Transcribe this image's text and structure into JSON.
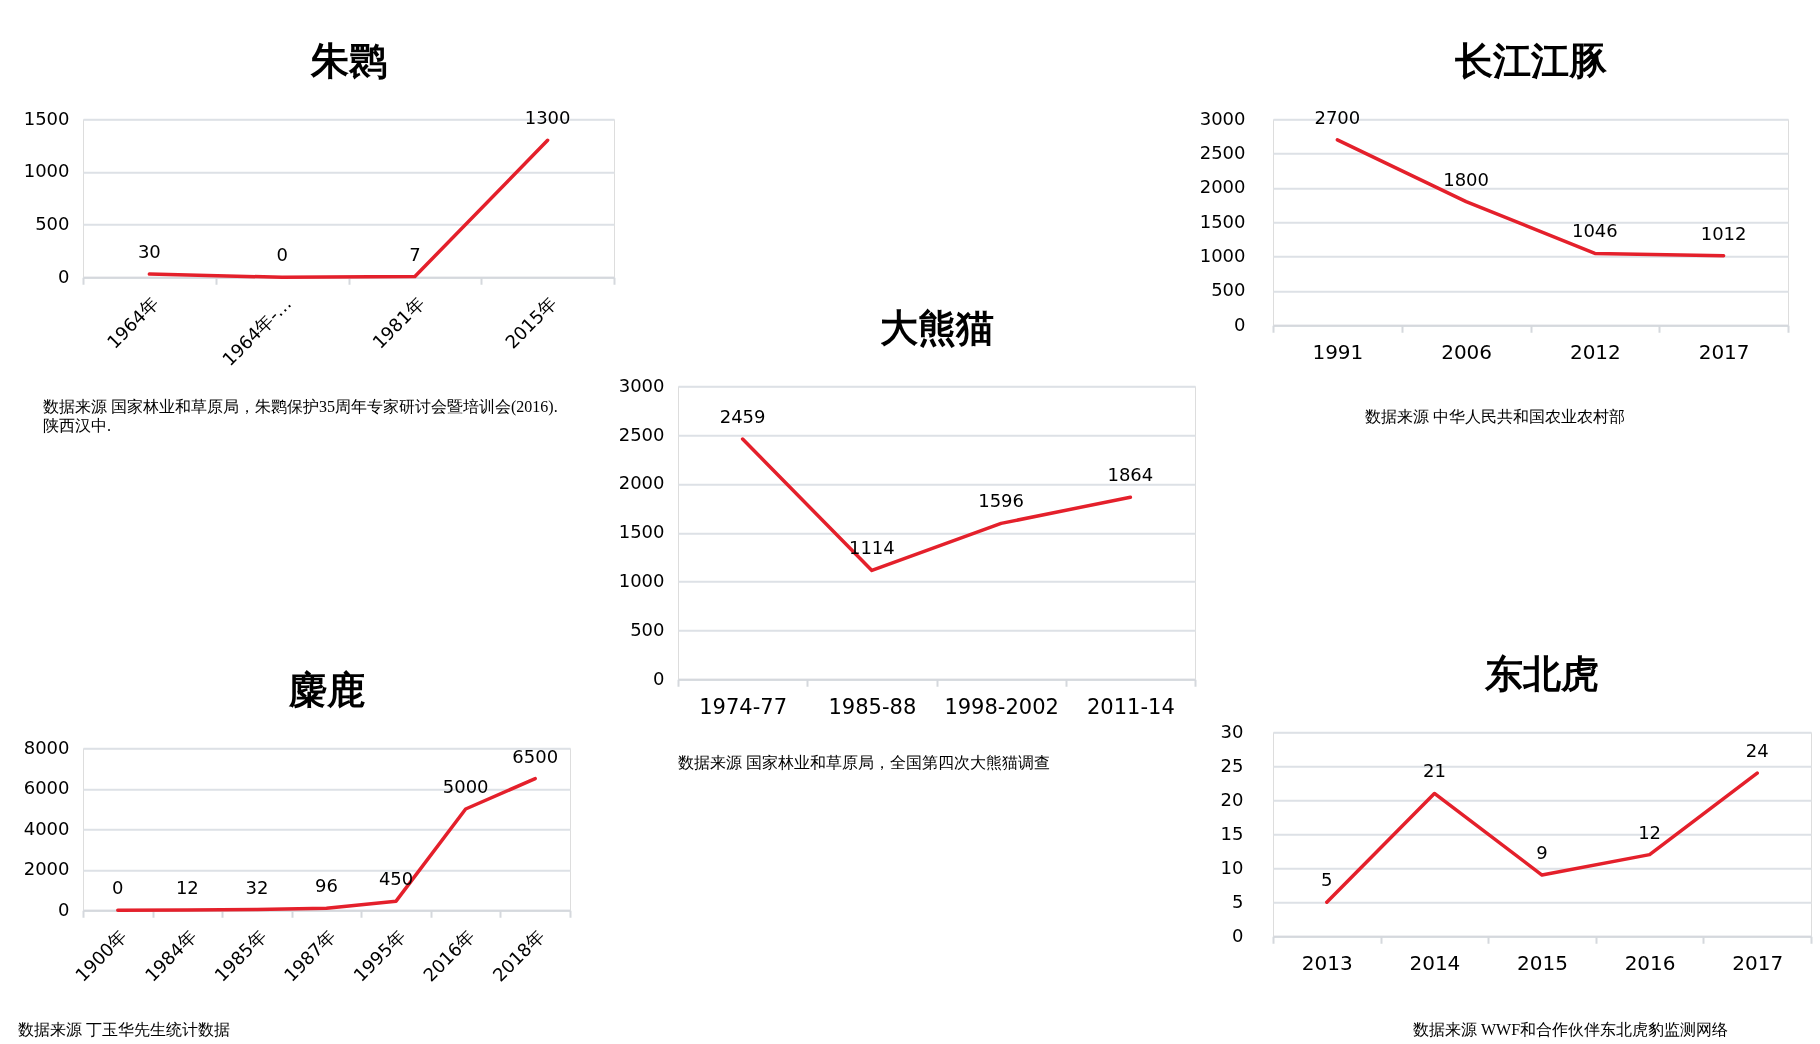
{
  "chart_data": [
    {
      "type": "line",
      "title": "朱鹮",
      "categories": [
        "1964年",
        "1964年-…",
        "1981年",
        "2015年"
      ],
      "values": [
        30,
        0,
        7,
        1300
      ],
      "color": "#e4202b",
      "ylim": [
        0,
        1500
      ],
      "yticks": [
        0,
        500,
        1000,
        1500
      ],
      "grid": "y",
      "data_labels": true,
      "annotations": [
        "数据来源 国家林业和草原局，朱鹮保护35周年专家研讨会暨培训会(2016). 陕西汉中."
      ]
    },
    {
      "type": "line",
      "title": "长江江豚",
      "categories": [
        "1991",
        "2006",
        "2012",
        "2017"
      ],
      "values": [
        2700,
        1800,
        1046,
        1012
      ],
      "color": "#e4202b",
      "ylim": [
        0,
        3000
      ],
      "yticks": [
        0,
        500,
        1000,
        1500,
        2000,
        2500,
        3000
      ],
      "grid": "y",
      "data_labels": true,
      "annotations": [
        "数据来源 中华人民共和国农业农村部"
      ]
    },
    {
      "type": "line",
      "title": "大熊猫",
      "categories": [
        "1974-77",
        "1985-88",
        "1998-2002",
        "2011-14"
      ],
      "values": [
        2459,
        1114,
        1596,
        1864
      ],
      "color": "#e4202b",
      "ylim": [
        0,
        3000
      ],
      "yticks": [
        0,
        500,
        1000,
        1500,
        2000,
        2500,
        3000
      ],
      "grid": "y",
      "data_labels": true,
      "annotations": [
        "数据来源 国家林业和草原局，全国第四次大熊猫调查"
      ]
    },
    {
      "type": "line",
      "title": "麋鹿",
      "categories": [
        "1900年",
        "1984年",
        "1985年",
        "1987年",
        "1995年",
        "2016年",
        "2018年"
      ],
      "values": [
        0,
        12,
        32,
        96,
        450,
        5000,
        6500
      ],
      "color": "#e4202b",
      "ylim": [
        0,
        8000
      ],
      "yticks": [
        0,
        2000,
        4000,
        6000,
        8000
      ],
      "grid": "y",
      "data_labels": true,
      "annotations": [
        "数据来源 丁玉华先生统计数据"
      ]
    },
    {
      "type": "line",
      "title": "东北虎",
      "categories": [
        "2013",
        "2014",
        "2015",
        "2016",
        "2017"
      ],
      "values": [
        5,
        21,
        9,
        12,
        24
      ],
      "color": "#e4202b",
      "ylim": [
        0,
        30
      ],
      "yticks": [
        0,
        5,
        10,
        15,
        20,
        25,
        30
      ],
      "grid": "y",
      "data_labels": true,
      "annotations": [
        "数据来源 WWF和合作伙伴东北虎豹监测网络"
      ]
    }
  ]
}
